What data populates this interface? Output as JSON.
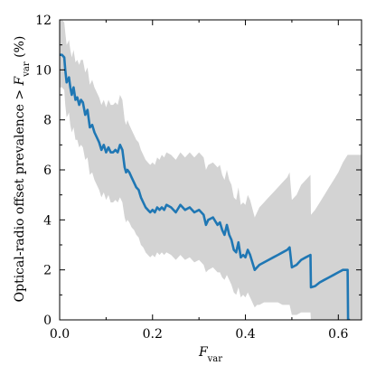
{
  "chart_data": {
    "type": "line",
    "xlabel_main": "F",
    "xlabel_sub": "var",
    "ylabel_prefix": "Optical-radio offset prevalence > ",
    "ylabel_var": "F",
    "ylabel_sub": "var",
    "ylabel_suffix": " (%)",
    "xlim": [
      0.0,
      0.65
    ],
    "ylim": [
      0,
      12
    ],
    "xticks": [
      0.0,
      0.2,
      0.4,
      0.6
    ],
    "xtick_labels": [
      "0.0",
      "0.2",
      "0.4",
      "0.6"
    ],
    "yticks": [
      0,
      2,
      4,
      6,
      8,
      10,
      12
    ],
    "ytick_labels": [
      "0",
      "2",
      "4",
      "6",
      "8",
      "10",
      "12"
    ],
    "line_color": "#1f77b4",
    "band_color": "#d3d3d3",
    "grid": false,
    "series": [
      {
        "x": [
          0.0,
          0.005,
          0.01,
          0.012,
          0.015,
          0.018,
          0.02,
          0.023,
          0.026,
          0.03,
          0.034,
          0.038,
          0.042,
          0.046,
          0.05,
          0.055,
          0.06,
          0.065,
          0.07,
          0.075,
          0.08,
          0.085,
          0.09,
          0.095,
          0.1,
          0.105,
          0.11,
          0.115,
          0.12,
          0.125,
          0.13,
          0.135,
          0.14,
          0.143,
          0.146,
          0.15,
          0.155,
          0.16,
          0.165,
          0.17,
          0.175,
          0.18,
          0.185,
          0.19,
          0.195,
          0.2,
          0.205,
          0.21,
          0.215,
          0.22,
          0.225,
          0.23,
          0.24,
          0.25,
          0.26,
          0.27,
          0.28,
          0.29,
          0.3,
          0.31,
          0.315,
          0.32,
          0.33,
          0.34,
          0.345,
          0.35,
          0.355,
          0.36,
          0.365,
          0.37,
          0.375,
          0.38,
          0.385,
          0.39,
          0.395,
          0.4,
          0.405,
          0.41,
          0.42,
          0.425,
          0.43,
          0.44,
          0.45,
          0.46,
          0.47,
          0.48,
          0.49,
          0.495,
          0.5,
          0.51,
          0.52,
          0.53,
          0.54,
          0.541,
          0.55,
          0.56,
          0.57,
          0.58,
          0.59,
          0.6,
          0.61,
          0.62,
          0.621,
          0.625
        ],
        "y": [
          10.6,
          10.6,
          10.5,
          10.0,
          9.5,
          9.6,
          9.7,
          9.3,
          9.0,
          9.3,
          8.8,
          8.9,
          8.6,
          8.8,
          8.7,
          8.2,
          8.4,
          7.7,
          7.8,
          7.5,
          7.3,
          7.1,
          6.8,
          7.0,
          6.7,
          6.9,
          6.7,
          6.7,
          6.8,
          6.7,
          7.0,
          6.8,
          6.1,
          5.9,
          6.0,
          5.9,
          5.7,
          5.5,
          5.3,
          5.2,
          4.9,
          4.7,
          4.5,
          4.4,
          4.3,
          4.4,
          4.3,
          4.5,
          4.4,
          4.5,
          4.4,
          4.6,
          4.5,
          4.3,
          4.6,
          4.4,
          4.5,
          4.3,
          4.4,
          4.2,
          3.8,
          4.0,
          4.1,
          3.8,
          3.9,
          3.6,
          3.4,
          3.8,
          3.4,
          3.2,
          2.8,
          2.7,
          3.1,
          2.5,
          2.6,
          2.5,
          2.8,
          2.6,
          2.0,
          2.1,
          2.2,
          2.3,
          2.4,
          2.5,
          2.6,
          2.7,
          2.8,
          2.9,
          2.1,
          2.2,
          2.4,
          2.5,
          2.6,
          1.3,
          1.35,
          1.5,
          1.6,
          1.7,
          1.8,
          1.9,
          2.0,
          2.0,
          0.0,
          0.0
        ],
        "lower": [
          9.3,
          9.3,
          9.2,
          8.6,
          8.1,
          8.2,
          8.3,
          7.8,
          7.5,
          7.7,
          7.2,
          7.2,
          6.9,
          7.0,
          6.9,
          6.4,
          6.5,
          5.8,
          5.9,
          5.6,
          5.4,
          5.2,
          4.9,
          5.1,
          4.8,
          5.0,
          4.7,
          4.7,
          4.8,
          4.7,
          4.9,
          4.7,
          4.1,
          3.9,
          4.0,
          3.9,
          3.7,
          3.6,
          3.4,
          3.3,
          3.0,
          2.9,
          2.7,
          2.6,
          2.5,
          2.6,
          2.5,
          2.7,
          2.6,
          2.7,
          2.6,
          2.7,
          2.6,
          2.4,
          2.6,
          2.4,
          2.5,
          2.3,
          2.4,
          2.2,
          1.9,
          2.0,
          2.1,
          1.9,
          1.9,
          1.7,
          1.6,
          1.8,
          1.6,
          1.4,
          1.1,
          1.0,
          1.3,
          0.9,
          1.0,
          0.9,
          1.1,
          0.9,
          0.5,
          0.6,
          0.6,
          0.7,
          0.7,
          0.7,
          0.7,
          0.6,
          0.6,
          0.6,
          0.2,
          0.2,
          0.3,
          0.3,
          0.3,
          0.0,
          0.0,
          0.0,
          0.0,
          0.0,
          0.0,
          0.0,
          0.0,
          0.0,
          0.0,
          0.0
        ],
        "upper": [
          12.0,
          12.0,
          11.9,
          11.5,
          11.0,
          11.1,
          11.2,
          10.8,
          10.5,
          10.8,
          10.3,
          10.4,
          10.2,
          10.4,
          10.4,
          9.9,
          10.1,
          9.4,
          9.6,
          9.3,
          9.1,
          8.9,
          8.6,
          8.8,
          8.5,
          8.8,
          8.6,
          8.6,
          8.7,
          8.6,
          9.0,
          8.8,
          8.0,
          7.8,
          8.0,
          7.8,
          7.6,
          7.4,
          7.2,
          7.1,
          6.8,
          6.6,
          6.4,
          6.3,
          6.2,
          6.3,
          6.2,
          6.5,
          6.4,
          6.6,
          6.5,
          6.7,
          6.6,
          6.4,
          6.7,
          6.5,
          6.7,
          6.5,
          6.7,
          6.5,
          6.0,
          6.2,
          6.3,
          6.1,
          6.2,
          5.8,
          5.6,
          6.0,
          5.6,
          5.4,
          4.9,
          4.8,
          5.3,
          4.6,
          4.7,
          4.6,
          5.0,
          4.8,
          4.1,
          4.3,
          4.5,
          4.7,
          4.9,
          5.1,
          5.3,
          5.5,
          5.7,
          5.9,
          4.8,
          5.0,
          5.4,
          5.6,
          5.8,
          4.2,
          4.4,
          4.7,
          5.0,
          5.3,
          5.6,
          5.9,
          6.3,
          6.6,
          6.6,
          6.6
        ]
      }
    ]
  }
}
